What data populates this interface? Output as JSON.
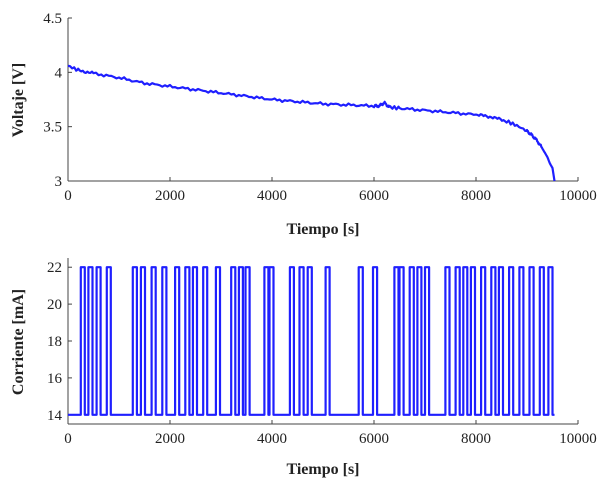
{
  "colors": {
    "series": "#1f1fff",
    "axis": "#444444",
    "text": "#222222"
  },
  "chart_data": [
    {
      "type": "line",
      "title": "",
      "xlabel": "Tiempo [s]",
      "ylabel": "Voltaje [V]",
      "xlim": [
        0,
        10000
      ],
      "ylim": [
        3,
        4.5
      ],
      "xticks": [
        0,
        2000,
        4000,
        6000,
        8000,
        10000
      ],
      "yticks": [
        3,
        3.5,
        4,
        4.5
      ],
      "ytick_labels": [
        "3",
        "3.5",
        "4",
        "4.5"
      ],
      "grid": false,
      "series": [
        {
          "x": [
            0,
            200,
            500,
            1000,
            1500,
            2000,
            2500,
            3000,
            3500,
            4000,
            4500,
            5000,
            5500,
            6000,
            6100,
            6200,
            6300,
            6500,
            7000,
            7500,
            8000,
            8300,
            8600,
            8800,
            9000,
            9100,
            9200,
            9300,
            9400,
            9450,
            9500,
            9540
          ],
          "y": [
            4.06,
            4.02,
            3.99,
            3.95,
            3.9,
            3.87,
            3.84,
            3.81,
            3.78,
            3.75,
            3.73,
            3.71,
            3.7,
            3.69,
            3.69,
            3.72,
            3.68,
            3.67,
            3.65,
            3.63,
            3.61,
            3.59,
            3.55,
            3.51,
            3.46,
            3.42,
            3.37,
            3.3,
            3.22,
            3.16,
            3.12,
            3.0
          ]
        }
      ]
    },
    {
      "type": "line",
      "title": "",
      "xlabel": "Tiempo [s]",
      "ylabel": "Corriente [mA]",
      "xlim": [
        0,
        10000
      ],
      "ylim": [
        13.5,
        22.5
      ],
      "xticks": [
        0,
        2000,
        4000,
        6000,
        8000,
        10000
      ],
      "yticks": [
        14,
        16,
        18,
        20,
        22
      ],
      "ytick_labels": [
        "14",
        "16",
        "18",
        "20",
        "22"
      ],
      "grid": false,
      "low_value": 14,
      "high_value": 22,
      "series": [
        {
          "pulses": [
            [
              250,
              330
            ],
            [
              400,
              480
            ],
            [
              560,
              640
            ],
            [
              760,
              840
            ],
            [
              1270,
              1350
            ],
            [
              1430,
              1510
            ],
            [
              1640,
              1720
            ],
            [
              1850,
              1930
            ],
            [
              2100,
              2180
            ],
            [
              2300,
              2380
            ],
            [
              2450,
              2530
            ],
            [
              2650,
              2730
            ],
            [
              2900,
              2980
            ],
            [
              3200,
              3280
            ],
            [
              3350,
              3430
            ],
            [
              3480,
              3560
            ],
            [
              3850,
              3930
            ],
            [
              3950,
              4030
            ],
            [
              4350,
              4430
            ],
            [
              4540,
              4620
            ],
            [
              4700,
              4780
            ],
            [
              5050,
              5130
            ],
            [
              5700,
              5780
            ],
            [
              5980,
              6060
            ],
            [
              6400,
              6480
            ],
            [
              6500,
              6580
            ],
            [
              6700,
              6780
            ],
            [
              6850,
              6930
            ],
            [
              7000,
              7080
            ],
            [
              7400,
              7480
            ],
            [
              7600,
              7680
            ],
            [
              7750,
              7830
            ],
            [
              7900,
              7980
            ],
            [
              8100,
              8180
            ],
            [
              8300,
              8380
            ],
            [
              8450,
              8530
            ],
            [
              8650,
              8730
            ],
            [
              8850,
              8930
            ],
            [
              9050,
              9130
            ],
            [
              9250,
              9330
            ],
            [
              9420,
              9500
            ]
          ],
          "x_end": 9540
        }
      ]
    }
  ]
}
